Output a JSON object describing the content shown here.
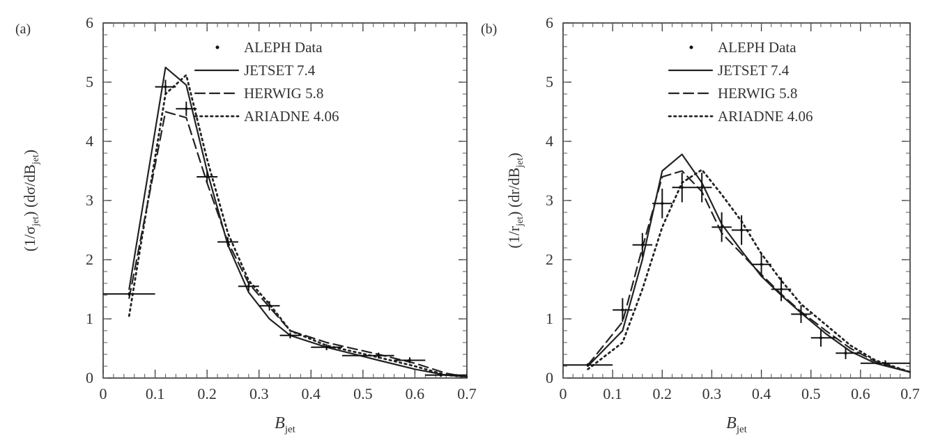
{
  "chart_data": [
    {
      "type": "line",
      "panel_label": "(a)",
      "xlabel": "B",
      "xlabel_sub": "jet",
      "ylabel_parts": [
        "(1/σ",
        "jet",
        ") (dσ/dB",
        "jet",
        ")"
      ],
      "xlim": [
        0,
        0.7
      ],
      "ylim": [
        0,
        6
      ],
      "x_ticks": [
        "0",
        "0.1",
        "0.2",
        "0.3",
        "0.4",
        "0.5",
        "0.6",
        "0.7"
      ],
      "y_ticks": [
        "0",
        "1",
        "2",
        "3",
        "4",
        "5",
        "6"
      ],
      "grid": false,
      "legend_position": "top-right",
      "legend": [
        {
          "label": "ALEPH Data",
          "style": "dot"
        },
        {
          "label": "JETSET 7.4",
          "style": "solid"
        },
        {
          "label": "HERWIG 5.8",
          "style": "dashed"
        },
        {
          "label": "ARIADNE 4.06",
          "style": "dotted"
        }
      ],
      "data_points": [
        {
          "x": 0.05,
          "y": 1.42,
          "xerr": [
            0.0,
            0.1
          ],
          "yerr": 0.03
        },
        {
          "x": 0.12,
          "y": 4.92,
          "xerr": [
            0.1,
            0.14
          ],
          "yerr": 0.12
        },
        {
          "x": 0.16,
          "y": 4.55,
          "xerr": [
            0.14,
            0.18
          ],
          "yerr": 0.12
        },
        {
          "x": 0.2,
          "y": 3.4,
          "xerr": [
            0.18,
            0.22
          ],
          "yerr": 0.1
        },
        {
          "x": 0.24,
          "y": 2.3,
          "xerr": [
            0.22,
            0.26
          ],
          "yerr": 0.08
        },
        {
          "x": 0.28,
          "y": 1.55,
          "xerr": [
            0.26,
            0.3
          ],
          "yerr": 0.08
        },
        {
          "x": 0.32,
          "y": 1.22,
          "xerr": [
            0.3,
            0.34
          ],
          "yerr": 0.08
        },
        {
          "x": 0.36,
          "y": 0.72,
          "xerr": [
            0.34,
            0.38
          ],
          "yerr": 0.05
        },
        {
          "x": 0.43,
          "y": 0.52,
          "xerr": [
            0.4,
            0.46
          ],
          "yerr": 0.05
        },
        {
          "x": 0.53,
          "y": 0.38,
          "xerr": [
            0.46,
            0.56
          ],
          "yerr": 0.05
        },
        {
          "x": 0.59,
          "y": 0.3,
          "xerr": [
            0.56,
            0.62
          ],
          "yerr": 0.05
        },
        {
          "x": 0.65,
          "y": 0.05,
          "xerr": [
            0.62,
            0.7
          ],
          "yerr": 0.03
        }
      ],
      "series": [
        {
          "name": "JETSET 7.4",
          "style": "solid",
          "x": [
            0.05,
            0.12,
            0.16,
            0.2,
            0.24,
            0.28,
            0.32,
            0.36,
            0.43,
            0.53,
            0.6,
            0.66,
            0.7
          ],
          "y": [
            1.5,
            5.25,
            4.95,
            3.5,
            2.25,
            1.45,
            1.0,
            0.72,
            0.52,
            0.3,
            0.15,
            0.05,
            0.02
          ]
        },
        {
          "name": "HERWIG 5.8",
          "style": "dashed",
          "x": [
            0.05,
            0.12,
            0.16,
            0.2,
            0.24,
            0.28,
            0.32,
            0.36,
            0.43,
            0.53,
            0.6,
            0.66,
            0.7
          ],
          "y": [
            1.35,
            4.5,
            4.4,
            3.3,
            2.3,
            1.6,
            1.2,
            0.8,
            0.6,
            0.4,
            0.25,
            0.08,
            0.02
          ]
        },
        {
          "name": "ARIADNE 4.06",
          "style": "dotted",
          "x": [
            0.05,
            0.12,
            0.16,
            0.2,
            0.24,
            0.28,
            0.32,
            0.36,
            0.43,
            0.53,
            0.6,
            0.66,
            0.7
          ],
          "y": [
            1.05,
            4.8,
            5.12,
            3.7,
            2.45,
            1.65,
            1.25,
            0.8,
            0.55,
            0.35,
            0.2,
            0.05,
            0.02
          ]
        }
      ]
    },
    {
      "type": "line",
      "panel_label": "(b)",
      "xlabel": "B",
      "xlabel_sub": "jet",
      "ylabel_parts": [
        "(1/r",
        "jet",
        ") (dr/dB",
        "jet",
        ")"
      ],
      "xlim": [
        0,
        0.7
      ],
      "ylim": [
        0,
        6
      ],
      "x_ticks": [
        "0",
        "0.1",
        "0.2",
        "0.3",
        "0.4",
        "0.5",
        "0.6",
        "0.7"
      ],
      "y_ticks": [
        "0",
        "1",
        "2",
        "3",
        "4",
        "5",
        "6"
      ],
      "grid": false,
      "legend_position": "top-right",
      "legend": [
        {
          "label": "ALEPH Data",
          "style": "dot"
        },
        {
          "label": "JETSET 7.4",
          "style": "solid"
        },
        {
          "label": "HERWIG 5.8",
          "style": "dashed"
        },
        {
          "label": "ARIADNE 4.06",
          "style": "dotted"
        }
      ],
      "data_points": [
        {
          "x": 0.05,
          "y": 0.22,
          "xerr": [
            0.0,
            0.1
          ],
          "yerr": 0.03
        },
        {
          "x": 0.12,
          "y": 1.15,
          "xerr": [
            0.1,
            0.14
          ],
          "yerr": 0.2
        },
        {
          "x": 0.16,
          "y": 2.25,
          "xerr": [
            0.14,
            0.18
          ],
          "yerr": 0.2
        },
        {
          "x": 0.2,
          "y": 2.95,
          "xerr": [
            0.18,
            0.22
          ],
          "yerr": 0.25
        },
        {
          "x": 0.24,
          "y": 3.22,
          "xerr": [
            0.22,
            0.26
          ],
          "yerr": 0.25
        },
        {
          "x": 0.28,
          "y": 3.22,
          "xerr": [
            0.26,
            0.3
          ],
          "yerr": 0.25
        },
        {
          "x": 0.32,
          "y": 2.55,
          "xerr": [
            0.3,
            0.34
          ],
          "yerr": 0.25
        },
        {
          "x": 0.36,
          "y": 2.5,
          "xerr": [
            0.34,
            0.38
          ],
          "yerr": 0.25
        },
        {
          "x": 0.4,
          "y": 1.92,
          "xerr": [
            0.38,
            0.42
          ],
          "yerr": 0.2
        },
        {
          "x": 0.44,
          "y": 1.5,
          "xerr": [
            0.42,
            0.46
          ],
          "yerr": 0.2
        },
        {
          "x": 0.48,
          "y": 1.08,
          "xerr": [
            0.46,
            0.5
          ],
          "yerr": 0.15
        },
        {
          "x": 0.52,
          "y": 0.68,
          "xerr": [
            0.5,
            0.55
          ],
          "yerr": 0.15
        },
        {
          "x": 0.57,
          "y": 0.42,
          "xerr": [
            0.55,
            0.6
          ],
          "yerr": 0.1
        },
        {
          "x": 0.65,
          "y": 0.25,
          "xerr": [
            0.6,
            0.7
          ],
          "yerr": 0.05
        }
      ],
      "series": [
        {
          "name": "JETSET 7.4",
          "style": "solid",
          "x": [
            0.05,
            0.12,
            0.16,
            0.2,
            0.24,
            0.28,
            0.32,
            0.36,
            0.4,
            0.44,
            0.48,
            0.53,
            0.58,
            0.63,
            0.7
          ],
          "y": [
            0.2,
            0.8,
            2.0,
            3.5,
            3.78,
            3.3,
            2.6,
            2.15,
            1.72,
            1.4,
            1.1,
            0.75,
            0.45,
            0.25,
            0.1
          ]
        },
        {
          "name": "HERWIG 5.8",
          "style": "dashed",
          "x": [
            0.05,
            0.12,
            0.16,
            0.2,
            0.24,
            0.28,
            0.32,
            0.36,
            0.4,
            0.44,
            0.48,
            0.53,
            0.58,
            0.63,
            0.7
          ],
          "y": [
            0.22,
            0.95,
            2.2,
            3.4,
            3.5,
            3.15,
            2.45,
            2.1,
            1.75,
            1.42,
            1.12,
            0.8,
            0.5,
            0.28,
            0.1
          ]
        },
        {
          "name": "ARIADNE 4.06",
          "style": "dotted",
          "x": [
            0.05,
            0.12,
            0.16,
            0.2,
            0.24,
            0.28,
            0.32,
            0.36,
            0.4,
            0.44,
            0.48,
            0.53,
            0.58,
            0.63,
            0.7
          ],
          "y": [
            0.15,
            0.6,
            1.5,
            2.55,
            3.3,
            3.52,
            3.1,
            2.65,
            2.1,
            1.65,
            1.25,
            0.9,
            0.55,
            0.3,
            0.1
          ]
        }
      ]
    }
  ]
}
